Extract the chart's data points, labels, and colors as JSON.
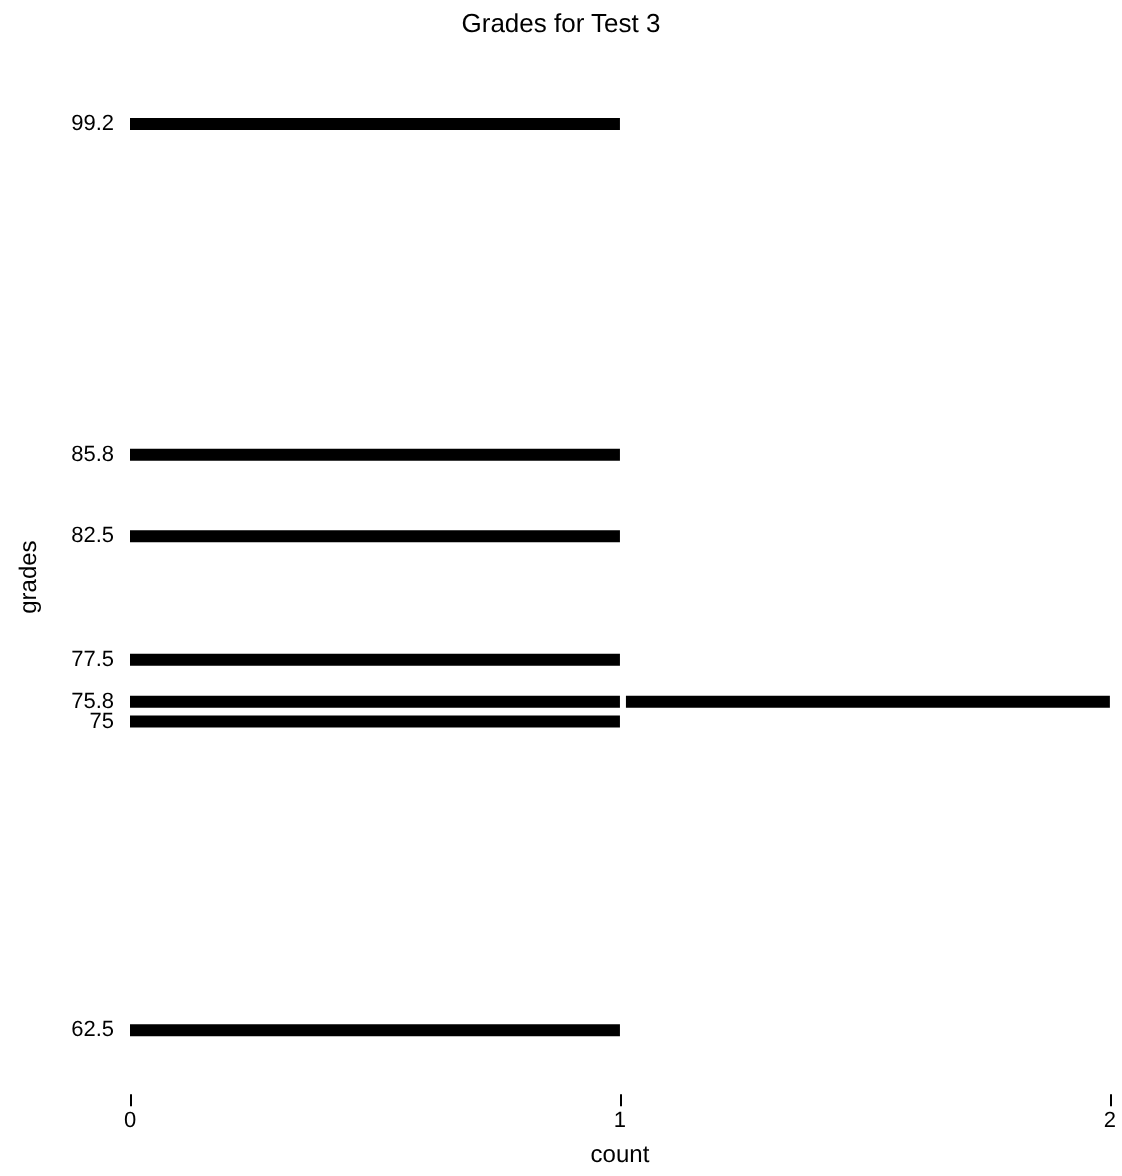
{
  "chart_data": {
    "type": "bar",
    "title": "Grades for Test 3",
    "xlabel": "count",
    "ylabel": "grades",
    "orientation": "horizontal",
    "stacked": true,
    "x": [
      62.5,
      75,
      75.8,
      77.5,
      82.5,
      85.8,
      99.2
    ],
    "series": [
      {
        "color": "#000000",
        "values": [
          1,
          1,
          1,
          1,
          1,
          1,
          1
        ]
      },
      {
        "color": "#000000",
        "values": [
          null,
          null,
          1,
          null,
          null,
          null,
          null
        ]
      }
    ],
    "xlim": [
      0,
      2
    ],
    "xticks": [
      0,
      1,
      2
    ],
    "ylim": [
      62.5,
      99.2
    ],
    "yticks": [
      62.5,
      75,
      75.8,
      77.5,
      82.5,
      85.8,
      99.2
    ],
    "grid": false
  }
}
